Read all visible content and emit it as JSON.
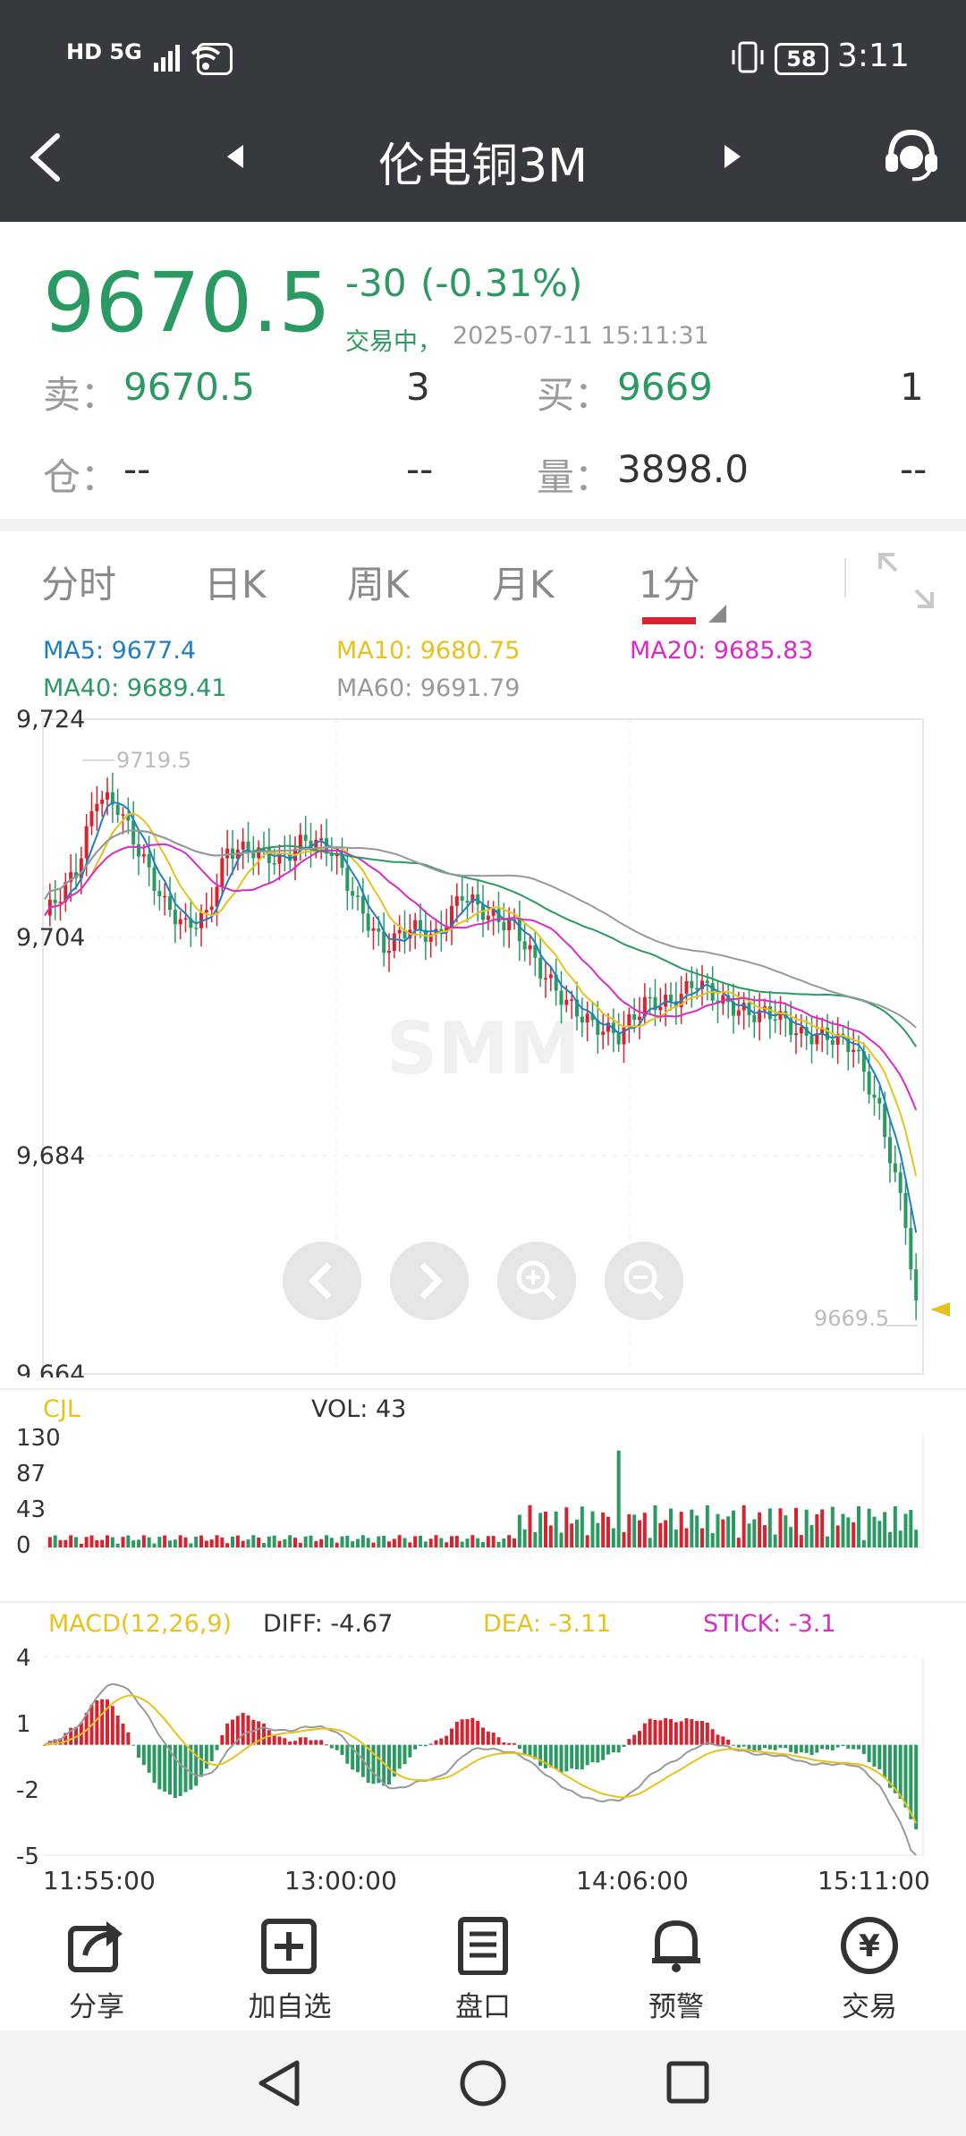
{
  "status_bar": {
    "network": "HD 5G",
    "battery": "58",
    "time": "3:11"
  },
  "nav": {
    "title": "伦电铜3M"
  },
  "quote": {
    "price": "9670.5",
    "change": "-30",
    "change_pct": "(-0.31%)",
    "status": "交易中，",
    "datetime": "2025-07-11 15:11:31",
    "sell_label": "卖：",
    "sell_price": "9670.5",
    "sell_qty": "3",
    "buy_label": "买：",
    "buy_price": "9669",
    "buy_qty": "1",
    "position_label": "仓：",
    "position_value": "--",
    "position_change": "--",
    "volume_label": "量：",
    "volume_value": "3898.0",
    "volume_change": "--"
  },
  "tabs": [
    {
      "label": "分时"
    },
    {
      "label": "日K"
    },
    {
      "label": "周K"
    },
    {
      "label": "月K"
    },
    {
      "label": "1分",
      "active": true
    }
  ],
  "ma": {
    "ma5": "MA5: 9677.4",
    "ma10": "MA10: 9680.75",
    "ma20": "MA20: 9685.83",
    "ma40": "MA40: 9689.41",
    "ma60": "MA60: 9691.79"
  },
  "chart_data": [
    {
      "type": "candlestick",
      "title": "",
      "y_ticks": [
        "9,724",
        "9,704",
        "9,684",
        "9,664"
      ],
      "ylim": [
        9664,
        9724
      ],
      "high_marker": "9719.5",
      "last_marker": "9669.5",
      "watermark": "SMM",
      "x_ticks": [
        "11:55:00",
        "13:00:00",
        "14:06:00",
        "15:11:00"
      ],
      "series": [
        {
          "name": "MA5",
          "color": "#1f7fc0"
        },
        {
          "name": "MA10",
          "color": "#e8c21c"
        },
        {
          "name": "MA20",
          "color": "#d92bc5"
        },
        {
          "name": "MA40",
          "color": "#2a9a62"
        },
        {
          "name": "MA60",
          "color": "#999999"
        }
      ]
    },
    {
      "type": "bar",
      "title": "CJL",
      "label": "VOL: 43",
      "y_ticks": [
        "130",
        "87",
        "43",
        "0"
      ],
      "ylim": [
        0,
        130
      ]
    },
    {
      "type": "bar",
      "title": "MACD(12,26,9)",
      "diff": "DIFF: -4.67",
      "dea": "DEA: -3.11",
      "stick": "STICK: -3.1",
      "y_ticks": [
        "4",
        "1",
        "-2",
        "-5"
      ],
      "ylim": [
        -5,
        4
      ]
    }
  ],
  "colors": {
    "up": "#d7232f",
    "down": "#2a9a62",
    "header": "#36393e"
  },
  "bottom_nav": [
    {
      "label": "分享",
      "icon": "share-icon"
    },
    {
      "label": "加自选",
      "icon": "add-favorite-icon"
    },
    {
      "label": "盘口",
      "icon": "order-book-icon"
    },
    {
      "label": "预警",
      "icon": "bell-icon"
    },
    {
      "label": "交易",
      "icon": "yen-icon"
    }
  ]
}
